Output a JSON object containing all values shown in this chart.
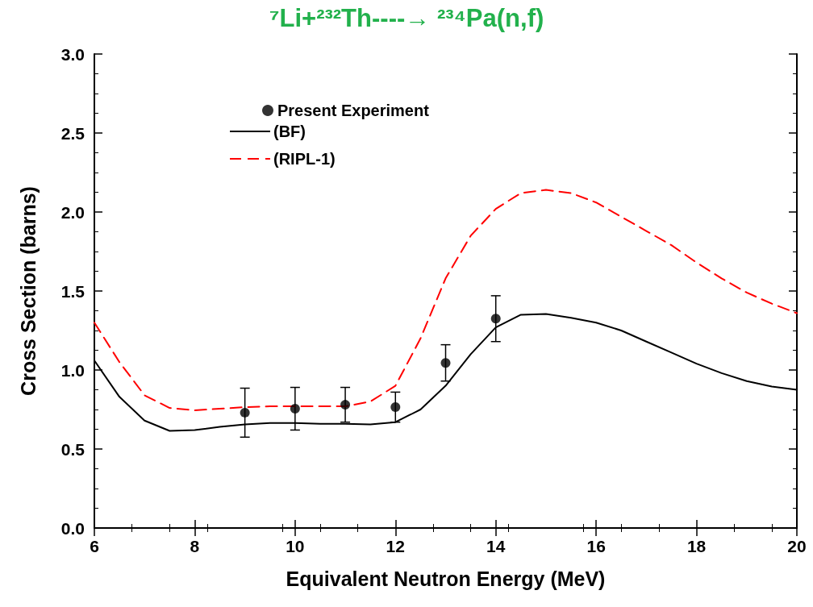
{
  "chart_data": {
    "type": "line",
    "title": "⁷Li+²³²Th----→ ²³⁴Pa(n,f)",
    "xlabel": "Equivalent Neutron Energy (MeV)",
    "ylabel": "Cross Section (barns)",
    "xlim": [
      6,
      20
    ],
    "xticks": [
      6,
      8,
      10,
      12,
      14,
      16,
      18,
      20
    ],
    "ylim": [
      0,
      3.0
    ],
    "yticks": [
      {
        "value": 0,
        "label": "0.0"
      },
      0.5,
      {
        "value": 1,
        "label": "1.0"
      },
      1.5,
      {
        "value": 2,
        "label": "2.0"
      },
      2.5,
      {
        "value": 3,
        "label": "3.0"
      }
    ],
    "grid": false,
    "legend": "top left",
    "series": [
      {
        "name": "Present Experiment",
        "type": "scatter",
        "marker": "circle",
        "color": "#000000",
        "x": [
          9,
          10,
          11,
          12,
          13,
          14
        ],
        "values": [
          0.73,
          0.755,
          0.78,
          0.765,
          1.045,
          1.325
        ],
        "errors": [
          0.155,
          0.135,
          0.11,
          0.095,
          0.115,
          0.145
        ]
      },
      {
        "name": "(BF)",
        "type": "line",
        "marker": "none",
        "line_style": "solid",
        "color": "#000000",
        "x": [
          6,
          6.5,
          7,
          7.5,
          8,
          8.5,
          9,
          9.5,
          10,
          10.5,
          11,
          11.5,
          12,
          12.5,
          13,
          13.5,
          14,
          14.5,
          15,
          15.5,
          16,
          16.5,
          17,
          17.5,
          18,
          18.5,
          19,
          19.5,
          20
        ],
        "values": [
          1.06,
          0.83,
          0.68,
          0.615,
          0.62,
          0.64,
          0.655,
          0.665,
          0.665,
          0.66,
          0.66,
          0.655,
          0.67,
          0.75,
          0.9,
          1.1,
          1.27,
          1.35,
          1.355,
          1.33,
          1.3,
          1.25,
          1.18,
          1.11,
          1.04,
          0.98,
          0.93,
          0.895,
          0.875
        ]
      },
      {
        "name": "(RIPL-1)",
        "type": "line",
        "marker": "none",
        "line_style": "dashed",
        "color": "#ff0000",
        "x": [
          6,
          6.5,
          7,
          7.5,
          8,
          8.5,
          9,
          9.5,
          10,
          10.5,
          11,
          11.5,
          12,
          12.5,
          13,
          13.5,
          14,
          14.5,
          15,
          15.5,
          16,
          16.5,
          17,
          17.5,
          18,
          18.5,
          19,
          19.5,
          20
        ],
        "values": [
          1.3,
          1.05,
          0.84,
          0.76,
          0.745,
          0.755,
          0.765,
          0.77,
          0.77,
          0.77,
          0.77,
          0.8,
          0.9,
          1.2,
          1.58,
          1.85,
          2.02,
          2.12,
          2.14,
          2.12,
          2.06,
          1.97,
          1.88,
          1.79,
          1.68,
          1.58,
          1.49,
          1.42,
          1.36
        ]
      }
    ]
  }
}
